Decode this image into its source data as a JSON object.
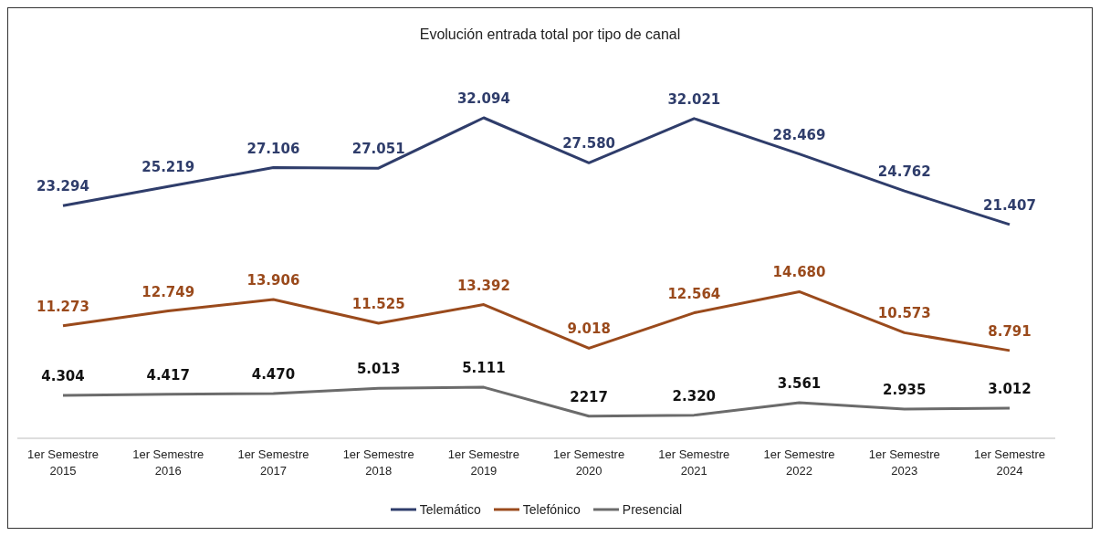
{
  "chart_data": {
    "type": "line",
    "title": "Evolución entrada total por tipo de canal",
    "categories": [
      "1er Semestre 2015",
      "1er Semestre 2016",
      "1er Semestre 2017",
      "1er Semestre 2018",
      "1er Semestre 2019",
      "1er Semestre 2020",
      "1er Semestre 2021",
      "1er Semestre 2022",
      "1er Semestre 2023",
      "1er Semestre 2024"
    ],
    "series": [
      {
        "name": "Telemático",
        "color": "#2f3d6b",
        "values": [
          23294,
          25219,
          27106,
          27051,
          32094,
          27580,
          32021,
          28469,
          24762,
          21407
        ],
        "value_labels": [
          "23.294",
          "25.219",
          "27.106",
          "27.051",
          "32.094",
          "27.580",
          "32.021",
          "28.469",
          "24.762",
          "21.407"
        ]
      },
      {
        "name": "Telefónico",
        "color": "#9a4a1c",
        "values": [
          11273,
          12749,
          13906,
          11525,
          13392,
          9018,
          12564,
          14680,
          10573,
          8791
        ],
        "value_labels": [
          "11.273",
          "12.749",
          "13.906",
          "11.525",
          "13.392",
          "9.018",
          "12.564",
          "14.680",
          "10.573",
          "8.791"
        ]
      },
      {
        "name": "Presencial",
        "color": "#6b6b6b",
        "values": [
          4304,
          4417,
          4470,
          5013,
          5111,
          2217,
          2320,
          3561,
          2935,
          3012
        ],
        "value_labels": [
          "4.304",
          "4.417",
          "4.470",
          "5.013",
          "5.111",
          "2217",
          "2.320",
          "3.561",
          "2.935",
          "3.012"
        ]
      }
    ],
    "legend": "bottom",
    "marker": "none",
    "line_style": "solid"
  }
}
